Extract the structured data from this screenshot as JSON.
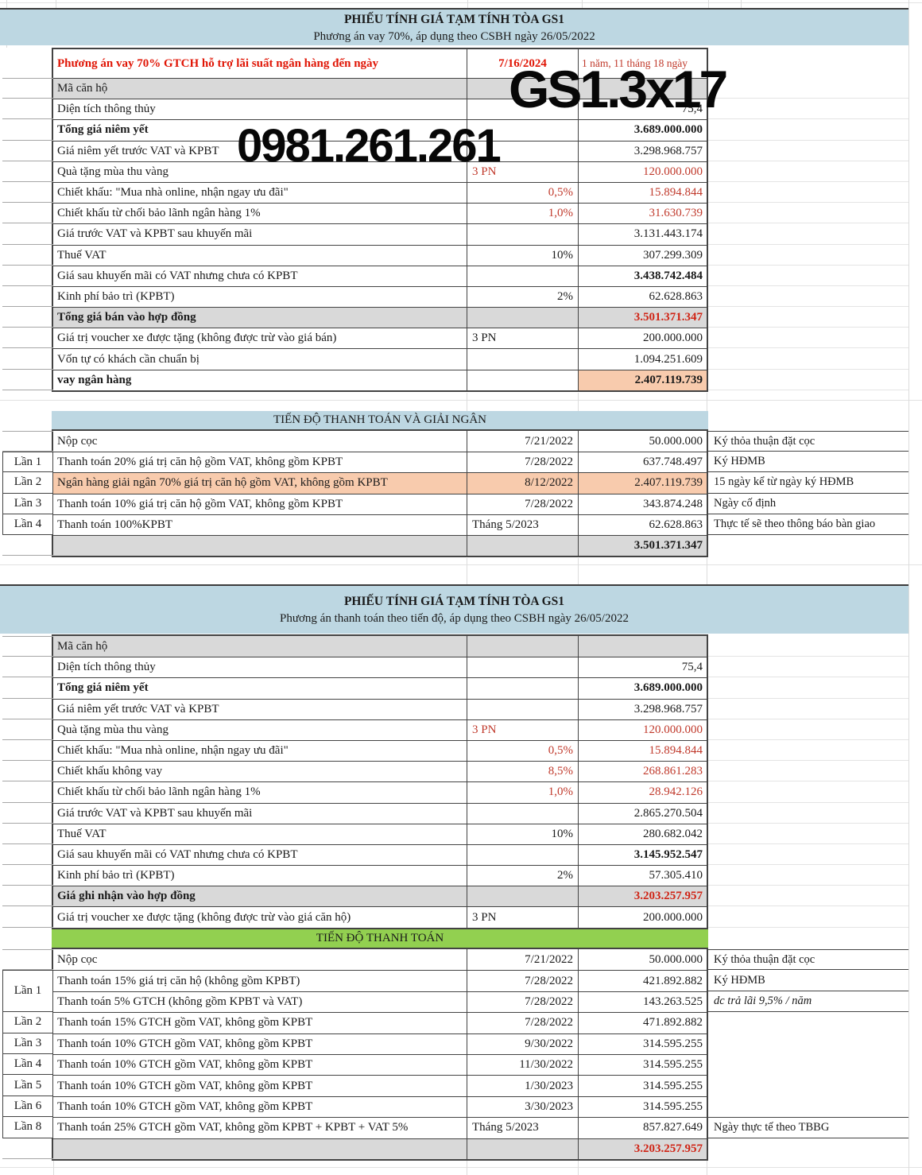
{
  "colors": {
    "header_blue": "#bdd7e2",
    "section_green": "#92d050",
    "highlight_orange": "#f8cbad",
    "row_grey": "#d9d9d9",
    "red_text": "#c0392b",
    "strong_red": "#d02415"
  },
  "watermarks": {
    "unit_code": "GS1.3x17",
    "phone": "0981.261.261"
  },
  "sheet1": {
    "title": "PHIẾU TÍNH GIÁ TẠM TÍNH TÒA GS1",
    "subtitle": "Phương án vay 70%, áp dụng theo CSBH ngày 26/05/2022",
    "loan_header": {
      "label": "Phương án vay 70% GTCH hỗ trợ lãi suất ngân hàng đến ngày",
      "date": "7/16/2024",
      "duration": "1 năm, 11 tháng 18 ngày"
    },
    "rows": [
      {
        "label": "Mã căn hộ",
        "row_bg": "grey"
      },
      {
        "label": "Diện tích thông thủy",
        "value": "75,4"
      },
      {
        "label": "Tổng giá niêm yết",
        "label_bold": true,
        "value": "3.689.000.000",
        "value_bold": true
      },
      {
        "label": "Giá niêm yết trước VAT và KPBT",
        "value": "3.298.968.757"
      },
      {
        "label": "Quà tặng mùa thu vàng",
        "mid": "3 PN",
        "mid_left": true,
        "mid_red": true,
        "value": "120.000.000",
        "value_red": true
      },
      {
        "label": "Chiết khấu: \"Mua nhà online, nhận ngay ưu đãi\"",
        "mid": "0,5%",
        "mid_red": true,
        "value": "15.894.844",
        "value_red": true
      },
      {
        "label": "Chiết khấu từ chối bảo lãnh ngân hàng 1%",
        "mid": "1,0%",
        "mid_red": true,
        "value": "31.630.739",
        "value_red": true
      },
      {
        "label": "Giá trước VAT và KPBT sau khuyến mãi",
        "value": "3.131.443.174"
      },
      {
        "label": "Thuế VAT",
        "mid": "10%",
        "value": "307.299.309"
      },
      {
        "label": "Giá sau khuyến mãi có VAT nhưng chưa có KPBT",
        "value": "3.438.742.484",
        "value_bold": true
      },
      {
        "label": "Kinh phí bảo trì (KPBT)",
        "mid": "2%",
        "value": "62.628.863"
      },
      {
        "label": "Tổng giá bán vào hợp đồng",
        "label_bold": true,
        "row_bg": "grey",
        "value": "3.501.371.347",
        "value_bold": true,
        "value_red_strong": true
      },
      {
        "label": "Giá trị voucher xe được tặng (không được trừ vào giá bán)",
        "mid": "3 PN",
        "mid_left": true,
        "value": "200.000.000"
      },
      {
        "label": "Vốn tự có khách cần chuẩn bị",
        "value": "1.094.251.609"
      },
      {
        "label": "vay ngân hàng",
        "label_bold": true,
        "value": "2.407.119.739",
        "value_bold": true,
        "value_bg": "orange"
      }
    ],
    "schedule": {
      "title": "TIẾN ĐỘ THANH TOÁN VÀ GIẢI NGÂN",
      "rows": [
        {
          "stage": "",
          "label": "Nộp cọc",
          "date": "7/21/2022",
          "value": "50.000.000",
          "note": "Ký thỏa thuận đặt cọc"
        },
        {
          "stage": "Lần 1",
          "label": "Thanh toán 20% giá trị căn hộ gồm VAT, không gồm KPBT",
          "date": "7/28/2022",
          "value": "637.748.497",
          "note": "Ký HĐMB"
        },
        {
          "stage": "Lần 2",
          "label": "Ngân hàng giải ngân 70% giá trị căn hộ gồm VAT, không gồm KPBT",
          "date": "8/12/2022",
          "value": "2.407.119.739",
          "note": "15 ngày kể từ ngày ký HĐMB",
          "row_bg": "orange"
        },
        {
          "stage": "Lần 3",
          "label": "Thanh toán 10% giá trị căn hộ gồm VAT, không gồm KPBT",
          "date": "7/28/2022",
          "value": "343.874.248",
          "note": "Ngày cố định"
        },
        {
          "stage": "Lần 4",
          "label": "Thanh toán 100%KPBT",
          "date": "Tháng 5/2023",
          "date_left": true,
          "value": "62.628.863",
          "note": "Thực tế sẽ theo thông báo bàn giao"
        },
        {
          "total": true,
          "row_bg": "grey",
          "value": "3.501.371.347",
          "value_bold": true
        }
      ]
    }
  },
  "sheet2": {
    "title": "PHIẾU TÍNH GIÁ TẠM TÍNH TÒA GS1",
    "subtitle": "Phương án thanh toán theo tiến độ, áp dụng theo CSBH ngày 26/05/2022",
    "rows": [
      {
        "label": "Mã căn hộ",
        "row_bg": "grey"
      },
      {
        "label": "Diện tích thông thủy",
        "value": "75,4"
      },
      {
        "label": "Tổng giá niêm yết",
        "label_bold": true,
        "value": "3.689.000.000",
        "value_bold": true
      },
      {
        "label": "Giá niêm yết trước VAT và KPBT",
        "value": "3.298.968.757"
      },
      {
        "label": "Quà tặng mùa thu vàng",
        "mid": "3 PN",
        "mid_left": true,
        "mid_red": true,
        "value": "120.000.000",
        "value_red": true
      },
      {
        "label": "Chiết khấu: \"Mua nhà online, nhận ngay ưu đãi\"",
        "mid": "0,5%",
        "mid_red": true,
        "value": "15.894.844",
        "value_red": true
      },
      {
        "label": "Chiết khấu không vay",
        "mid": "8,5%",
        "mid_red": true,
        "value": "268.861.283",
        "value_red": true
      },
      {
        "label": "Chiết khấu từ chối bảo lãnh ngân hàng 1%",
        "mid": "1,0%",
        "mid_red": true,
        "value": "28.942.126",
        "value_red": true
      },
      {
        "label": "Giá trước VAT và KPBT sau khuyến mãi",
        "value": "2.865.270.504"
      },
      {
        "label": "Thuế VAT",
        "mid": "10%",
        "value": "280.682.042"
      },
      {
        "label": "Giá sau khuyến mãi có VAT nhưng chưa có KPBT",
        "value": "3.145.952.547",
        "value_bold": true
      },
      {
        "label": "Kinh phí bảo trì (KPBT)",
        "mid": "2%",
        "value": "57.305.410"
      },
      {
        "label": "Giá ghi nhận vào hợp đồng",
        "label_bold": true,
        "row_bg": "grey",
        "value": "3.203.257.957",
        "value_bold": true,
        "value_red_strong": true
      },
      {
        "label": "Giá trị voucher xe được tặng (không được trừ vào giá căn hộ)",
        "mid": "3 PN",
        "mid_left": true,
        "value": "200.000.000"
      }
    ],
    "schedule": {
      "title": "TIẾN ĐỘ THANH TOÁN",
      "rows": [
        {
          "stage": "",
          "label": "Nộp cọc",
          "date": "7/21/2022",
          "value": "50.000.000",
          "note": "Ký thỏa thuận đặt cọc"
        },
        {
          "stage": "Lần 1",
          "stage_span": 2,
          "label": "Thanh toán 15% giá trị căn hộ (không gồm KPBT)",
          "date": "7/28/2022",
          "value": "421.892.882",
          "note": "Ký HĐMB"
        },
        {
          "stage": "",
          "stage_merged": true,
          "label": "Thanh toán 5% GTCH (không gồm KPBT và VAT)",
          "date": "7/28/2022",
          "value": "143.263.525",
          "note": "dc trả lãi 9,5% / năm",
          "note_italic": true
        },
        {
          "stage": "Lần 2",
          "label": "Thanh toán 15% GTCH gồm VAT, không gồm KPBT",
          "date": "7/28/2022",
          "value": "471.892.882"
        },
        {
          "stage": "Lần 3",
          "label": "Thanh toán 10% GTCH gồm VAT, không gồm KPBT",
          "date": "9/30/2022",
          "value": "314.595.255"
        },
        {
          "stage": "Lần 4",
          "label": "Thanh toán 10% GTCH gồm VAT, không gồm KPBT",
          "date": "11/30/2022",
          "value": "314.595.255"
        },
        {
          "stage": "Lần 5",
          "label": "Thanh toán 10% GTCH gồm VAT, không gồm KPBT",
          "date": "1/30/2023",
          "value": "314.595.255"
        },
        {
          "stage": "Lần 6",
          "label": "Thanh toán 10% GTCH gồm VAT, không gồm KPBT",
          "date": "3/30/2023",
          "value": "314.595.255"
        },
        {
          "stage": "Lần 8",
          "label": "Thanh toán 25% GTCH gồm VAT, không gồm KPBT + KPBT + VAT 5%",
          "date": "Tháng 5/2023",
          "date_left": true,
          "value": "857.827.649",
          "note": "Ngày thực tế theo TBBG"
        },
        {
          "total": true,
          "row_bg": "grey",
          "value": "3.203.257.957",
          "value_bold": true,
          "value_red_strong": true
        }
      ]
    }
  }
}
